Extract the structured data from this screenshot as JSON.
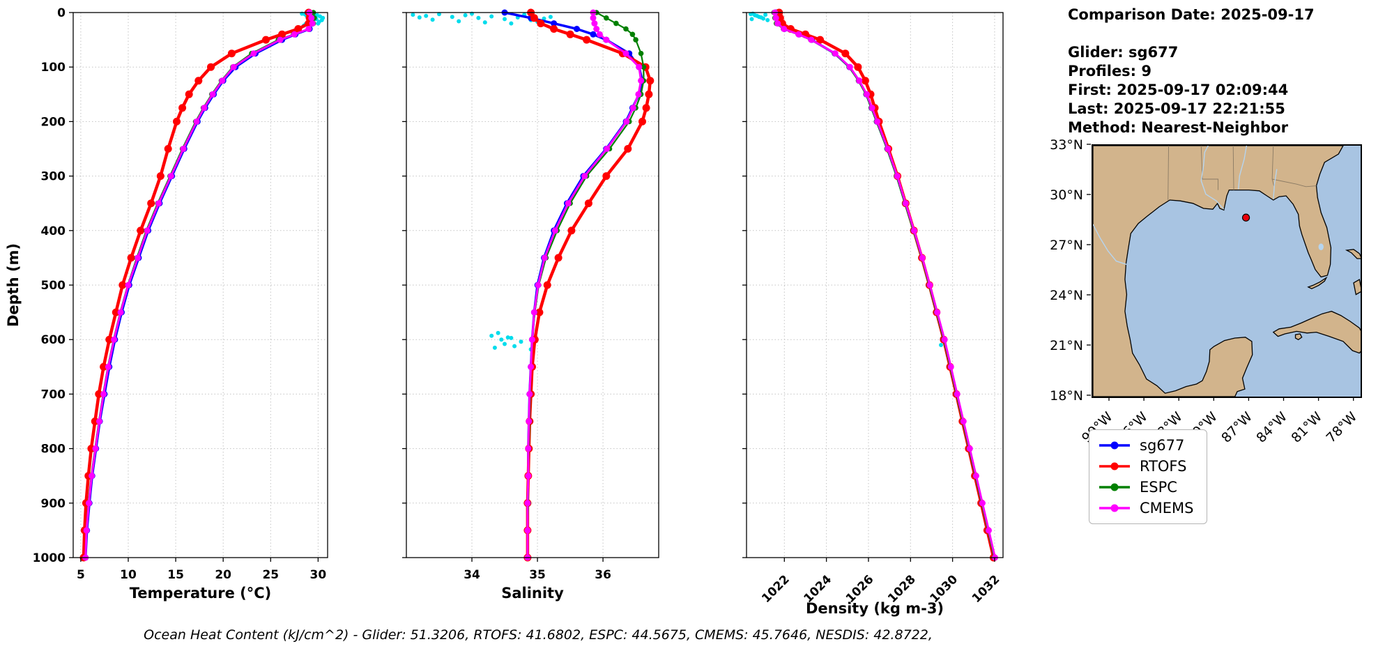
{
  "info_panel": {
    "comparison_date": "Comparison Date: 2025-09-17",
    "glider": "Glider: sg677",
    "profiles": "Profiles: 9",
    "first": "First: 2025-09-17 02:09:44",
    "last": "Last: 2025-09-17 22:21:55",
    "method": "Method: Nearest-Neighbor"
  },
  "legend": {
    "entries": [
      {
        "label": "sg677",
        "color": "#0000ff"
      },
      {
        "label": "RTOFS",
        "color": "#ff0000"
      },
      {
        "label": "ESPC",
        "color": "#008000"
      },
      {
        "label": "CMEMS",
        "color": "#ff00ff"
      }
    ]
  },
  "footer": {
    "ohc_caption": "Ocean Heat Content (kJ/cm^2) - Glider: 51.3206,  RTOFS: 41.6802,  ESPC: 44.5675,  CMEMS: 45.7646,  NESDIS: 42.8722,"
  },
  "map": {
    "lat_labels": [
      "33°N",
      "30°N",
      "27°N",
      "24°N",
      "21°N",
      "18°N"
    ],
    "lat_values": [
      33,
      30,
      27,
      24,
      21,
      18
    ],
    "lon_labels": [
      "99°W",
      "96°W",
      "93°W",
      "90°W",
      "87°W",
      "84°W",
      "81°W",
      "78°W"
    ],
    "lon_values": [
      -99,
      -96,
      -93,
      -90,
      -87,
      -84,
      -81,
      -78
    ],
    "extent": {
      "lon_min": -100.5,
      "lon_max": -77.5,
      "lat_min": 18,
      "lat_max": 33
    },
    "marker": {
      "lon": -87.35,
      "lat": 28.7,
      "color": "#e8000b"
    },
    "colors": {
      "land": "#d2b48c",
      "ocean": "#a8c4e2",
      "lake": "#b6d4ee"
    }
  },
  "chart_data": [
    {
      "type": "line",
      "xlabel": "Temperature (°C)",
      "ylabel": "Depth (m)",
      "xlim": [
        4.2,
        31.0
      ],
      "ylim": [
        0,
        1000
      ],
      "xticks": [
        5,
        10,
        15,
        20,
        25,
        30
      ],
      "xtick_labels": [
        "5",
        "10",
        "15",
        "20",
        "25",
        "30"
      ],
      "yticks": [
        0,
        100,
        200,
        300,
        400,
        500,
        600,
        700,
        800,
        900,
        1000
      ],
      "depths": [
        0,
        10,
        20,
        30,
        40,
        50,
        75,
        100,
        125,
        150,
        175,
        200,
        250,
        300,
        350,
        400,
        450,
        500,
        550,
        600,
        650,
        700,
        750,
        800,
        850,
        900,
        950,
        1000
      ],
      "series": [
        {
          "name": "sg677",
          "color": "#0000ff",
          "values": [
            28.9,
            29.2,
            29.4,
            29.1,
            27.6,
            26.2,
            23.4,
            21.3,
            20.0,
            19.0,
            18.1,
            17.3,
            15.9,
            14.6,
            13.3,
            12.1,
            11.1,
            10.1,
            9.3,
            8.6,
            8.0,
            7.5,
            7.0,
            6.6,
            6.2,
            5.9,
            5.65,
            5.5
          ]
        },
        {
          "name": "RTOFS",
          "color": "#ff0000",
          "values": [
            29.0,
            29.1,
            29.0,
            27.9,
            26.2,
            24.5,
            20.9,
            18.7,
            17.4,
            16.4,
            15.7,
            15.1,
            14.2,
            13.4,
            12.4,
            11.3,
            10.3,
            9.4,
            8.7,
            8.0,
            7.4,
            6.9,
            6.5,
            6.1,
            5.8,
            5.55,
            5.4,
            5.3
          ]
        },
        {
          "name": "ESPC",
          "color": "#008000",
          "values": [
            29.5,
            29.6,
            29.5,
            29.0,
            27.4,
            25.8,
            23.0,
            21.0,
            19.8,
            18.8,
            17.9,
            17.1,
            15.7,
            14.4,
            13.1,
            11.9,
            10.9,
            9.95,
            9.15,
            8.45,
            7.85,
            7.35,
            6.9,
            6.5,
            6.1,
            5.8,
            5.6,
            5.5
          ]
        },
        {
          "name": "CMEMS",
          "color": "#ff00ff",
          "values": [
            29.1,
            29.3,
            29.4,
            29.0,
            27.5,
            26.0,
            23.2,
            21.1,
            19.9,
            18.9,
            18.0,
            17.2,
            15.8,
            14.5,
            13.2,
            12.0,
            11.0,
            10.0,
            9.2,
            8.5,
            7.9,
            7.4,
            6.95,
            6.55,
            6.15,
            5.85,
            5.6,
            5.5
          ]
        }
      ],
      "scatter": {
        "name": "glider-observations",
        "color": "#00dcec",
        "points": [
          [
            28.3,
            2
          ],
          [
            28.6,
            3
          ],
          [
            28.9,
            2
          ],
          [
            29.2,
            4
          ],
          [
            29.6,
            3
          ],
          [
            29.9,
            5
          ],
          [
            30.2,
            7
          ],
          [
            30.5,
            10
          ],
          [
            30.4,
            14
          ],
          [
            30.1,
            17
          ],
          [
            29.8,
            12
          ],
          [
            29.5,
            8
          ],
          [
            29.3,
            15
          ],
          [
            29.0,
            18
          ],
          [
            28.7,
            21
          ],
          [
            28.5,
            24
          ],
          [
            29.1,
            26
          ],
          [
            29.4,
            22
          ],
          [
            30.0,
            20
          ],
          [
            28.8,
            6
          ]
        ]
      }
    },
    {
      "type": "line",
      "xlabel": "Salinity",
      "ylabel": "",
      "xlim": [
        33.0,
        36.85
      ],
      "ylim": [
        0,
        1000
      ],
      "xticks": [
        34,
        35,
        36
      ],
      "xtick_labels": [
        "34",
        "35",
        "36"
      ],
      "yticks": [
        0,
        100,
        200,
        300,
        400,
        500,
        600,
        700,
        800,
        900,
        1000
      ],
      "depths": [
        0,
        10,
        20,
        30,
        40,
        50,
        75,
        100,
        125,
        150,
        175,
        200,
        250,
        300,
        350,
        400,
        450,
        500,
        550,
        600,
        650,
        700,
        750,
        800,
        850,
        900,
        950,
        1000
      ],
      "series": [
        {
          "name": "sg677",
          "color": "#0000ff",
          "values": [
            34.5,
            34.9,
            35.25,
            35.6,
            35.85,
            36.05,
            36.4,
            36.55,
            36.6,
            36.55,
            36.45,
            36.35,
            36.05,
            35.7,
            35.45,
            35.25,
            35.1,
            35.0,
            34.95,
            34.92,
            34.9,
            34.88,
            34.87,
            34.86,
            34.86,
            34.85,
            34.85,
            34.85
          ]
        },
        {
          "name": "RTOFS",
          "color": "#ff0000",
          "values": [
            34.9,
            34.95,
            35.05,
            35.25,
            35.5,
            35.75,
            36.3,
            36.65,
            36.72,
            36.7,
            36.66,
            36.6,
            36.38,
            36.05,
            35.78,
            35.52,
            35.32,
            35.15,
            35.03,
            34.96,
            34.92,
            34.9,
            34.88,
            34.87,
            34.86,
            34.85,
            34.85,
            34.85
          ]
        },
        {
          "name": "ESPC",
          "color": "#008000",
          "values": [
            35.9,
            36.05,
            36.2,
            36.35,
            36.45,
            36.5,
            36.58,
            36.62,
            36.62,
            36.58,
            36.5,
            36.4,
            36.1,
            35.75,
            35.5,
            35.3,
            35.13,
            35.02,
            34.96,
            34.92,
            34.9,
            34.89,
            34.88,
            34.87,
            34.86,
            34.86,
            34.85,
            34.85
          ]
        },
        {
          "name": "CMEMS",
          "color": "#ff00ff",
          "values": [
            35.85,
            35.85,
            35.87,
            35.9,
            35.95,
            36.05,
            36.35,
            36.55,
            36.58,
            36.54,
            36.46,
            36.36,
            36.06,
            35.72,
            35.47,
            35.27,
            35.11,
            35.01,
            34.95,
            34.92,
            34.9,
            34.88,
            34.87,
            34.86,
            34.86,
            34.85,
            34.85,
            34.85
          ]
        }
      ],
      "scatter": {
        "name": "glider-observations",
        "color": "#00dcec",
        "points": [
          [
            33.1,
            4
          ],
          [
            33.3,
            6
          ],
          [
            33.5,
            3
          ],
          [
            33.7,
            8
          ],
          [
            33.9,
            5
          ],
          [
            34.1,
            10
          ],
          [
            34.3,
            7
          ],
          [
            34.5,
            12
          ],
          [
            34.7,
            9
          ],
          [
            34.9,
            14
          ],
          [
            35.1,
            11
          ],
          [
            33.4,
            13
          ],
          [
            33.8,
            16
          ],
          [
            34.2,
            18
          ],
          [
            34.6,
            20
          ],
          [
            35.0,
            17
          ],
          [
            33.2,
            9
          ],
          [
            34.0,
            2
          ],
          [
            34.8,
            4
          ],
          [
            35.2,
            8
          ],
          [
            34.3,
            593
          ],
          [
            34.45,
            600
          ],
          [
            34.6,
            597
          ],
          [
            34.75,
            604
          ],
          [
            34.5,
            608
          ],
          [
            34.35,
            615
          ],
          [
            34.65,
            612
          ],
          [
            34.9,
            618
          ],
          [
            34.4,
            588
          ],
          [
            34.55,
            596
          ]
        ]
      }
    },
    {
      "type": "line",
      "xlabel": "Density (kg m-3)",
      "ylabel": "",
      "xlim": [
        1020.2,
        1032.4
      ],
      "ylim": [
        0,
        1000
      ],
      "xticks": [
        1022,
        1024,
        1026,
        1028,
        1030,
        1032
      ],
      "xtick_labels": [
        "1022",
        "1024",
        "1026",
        "1028",
        "1030",
        "1032"
      ],
      "yticks": [
        0,
        100,
        200,
        300,
        400,
        500,
        600,
        700,
        800,
        900,
        1000
      ],
      "depths": [
        0,
        10,
        20,
        30,
        40,
        50,
        75,
        100,
        125,
        150,
        175,
        200,
        250,
        300,
        350,
        400,
        450,
        500,
        550,
        600,
        650,
        700,
        750,
        800,
        850,
        900,
        950,
        1000
      ],
      "series": [
        {
          "name": "sg677",
          "color": "#0000ff",
          "values": [
            1021.6,
            1021.65,
            1021.7,
            1022.0,
            1022.7,
            1023.3,
            1024.4,
            1025.1,
            1025.55,
            1025.9,
            1026.15,
            1026.4,
            1026.9,
            1027.35,
            1027.75,
            1028.15,
            1028.55,
            1028.9,
            1029.25,
            1029.6,
            1029.9,
            1030.2,
            1030.5,
            1030.8,
            1031.1,
            1031.4,
            1031.7,
            1032.0
          ]
        },
        {
          "name": "RTOFS",
          "color": "#ff0000",
          "values": [
            1021.75,
            1021.8,
            1021.9,
            1022.3,
            1023.0,
            1023.7,
            1024.9,
            1025.5,
            1025.85,
            1026.1,
            1026.3,
            1026.5,
            1026.95,
            1027.38,
            1027.77,
            1028.16,
            1028.54,
            1028.9,
            1029.24,
            1029.58,
            1029.88,
            1030.18,
            1030.47,
            1030.77,
            1031.06,
            1031.36,
            1031.65,
            1031.95
          ]
        },
        {
          "name": "ESPC",
          "color": "#008000",
          "values": [
            1021.5,
            1021.55,
            1021.62,
            1021.95,
            1022.65,
            1023.25,
            1024.38,
            1025.08,
            1025.52,
            1025.88,
            1026.13,
            1026.38,
            1026.88,
            1027.33,
            1027.73,
            1028.13,
            1028.53,
            1028.88,
            1029.23,
            1029.58,
            1029.88,
            1030.18,
            1030.48,
            1030.78,
            1031.08,
            1031.38,
            1031.68,
            1031.98
          ]
        },
        {
          "name": "CMEMS",
          "color": "#ff00ff",
          "values": [
            1021.55,
            1021.6,
            1021.68,
            1021.98,
            1022.68,
            1023.28,
            1024.42,
            1025.12,
            1025.56,
            1025.92,
            1026.17,
            1026.42,
            1026.92,
            1027.37,
            1027.77,
            1028.17,
            1028.56,
            1028.92,
            1029.27,
            1029.62,
            1029.92,
            1030.22,
            1030.52,
            1030.82,
            1031.12,
            1031.42,
            1031.72,
            1032.02
          ]
        }
      ],
      "scatter": {
        "name": "glider-observations",
        "color": "#00dcec",
        "points": [
          [
            1020.4,
            3
          ],
          [
            1020.6,
            5
          ],
          [
            1020.8,
            8
          ],
          [
            1021.0,
            11
          ],
          [
            1021.2,
            14
          ],
          [
            1020.5,
            2
          ],
          [
            1020.7,
            6
          ],
          [
            1020.9,
            9
          ],
          [
            1021.1,
            4
          ],
          [
            1020.45,
            12
          ],
          [
            1029.5,
            598
          ],
          [
            1029.62,
            604
          ],
          [
            1029.45,
            610
          ]
        ]
      }
    }
  ]
}
